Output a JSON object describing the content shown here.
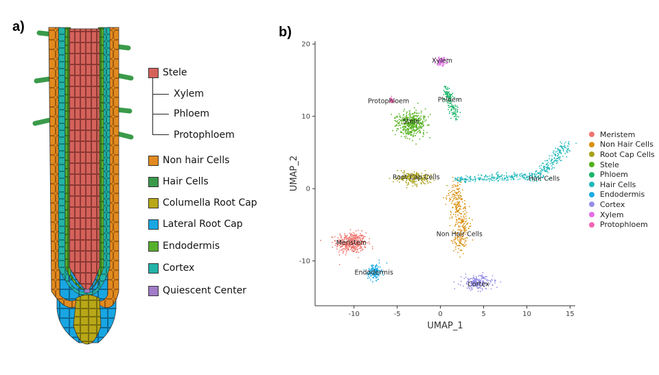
{
  "panel_a": {
    "label": "a)",
    "stele_label": "Stele",
    "stele_color": "#d4625b",
    "sub_items": [
      "Xylem",
      "Phloem",
      "Protophloem"
    ],
    "legend": [
      {
        "label": "Non hair Cells",
        "color": "#e28a1f"
      },
      {
        "label": "Hair Cells",
        "color": "#3a9a4a"
      },
      {
        "label": "Columella Root Cap",
        "color": "#b8a717"
      },
      {
        "label": "Lateral Root Cap",
        "color": "#18a6e3"
      },
      {
        "label": "Endodermis",
        "color": "#57b02c"
      },
      {
        "label": "Cortex",
        "color": "#22b3a9"
      },
      {
        "label": "Quiescent Center",
        "color": "#a07cc8"
      }
    ]
  },
  "chart_data": {
    "type": "scatter",
    "panel_label": "b)",
    "xlabel": "UMAP_1",
    "ylabel": "UMAP_2",
    "xlim": [
      -14.5,
      15.6
    ],
    "ylim": [
      -16.2,
      20.4
    ],
    "xticks": [
      -10,
      -5,
      0,
      5,
      10,
      15
    ],
    "yticks": [
      -10,
      0,
      10,
      20
    ],
    "grid": false,
    "legend_position": "right",
    "series": [
      {
        "name": "Meristem",
        "color": "#ef766f",
        "cluster_label": "Meristem",
        "center": [
          -10.3,
          -7.5
        ],
        "label_pos": [
          -10.3,
          -7.5
        ],
        "spread": [
          1.6,
          1.3
        ],
        "n": 420
      },
      {
        "name": "Non Hair Cells",
        "color": "#d9900f",
        "cluster_label": "Non Hair Cells",
        "center": [
          2.2,
          -4.5
        ],
        "label_pos": [
          2.2,
          -6.3
        ],
        "spread": [
          0.9,
          3.5
        ],
        "n": 330
      },
      {
        "name": "Root Cap Cells",
        "color": "#a8a11b",
        "cluster_label": "Root Cap Cells",
        "center": [
          -3.0,
          1.5
        ],
        "label_pos": [
          -2.8,
          1.6
        ],
        "spread": [
          2.0,
          0.8
        ],
        "n": 230
      },
      {
        "name": "Stele",
        "color": "#52b11a",
        "cluster_label": "Stele",
        "center": [
          -3.3,
          9.0
        ],
        "label_pos": [
          -3.4,
          9.3
        ],
        "spread": [
          1.5,
          1.6
        ],
        "n": 420
      },
      {
        "name": "Phloem",
        "color": "#1bb56a",
        "cluster_label": "Phloem",
        "center": [
          1.1,
          12.5
        ],
        "label_pos": [
          1.1,
          12.3
        ],
        "spread": [
          0.5,
          1.6
        ],
        "n": 150
      },
      {
        "name": "Hair Cells",
        "color": "#21b7ba",
        "cluster_label": "Hair Cells",
        "center": [
          9.0,
          1.8
        ],
        "label_pos": [
          12.0,
          1.4
        ],
        "spread": [
          3.5,
          1.0
        ],
        "n": 420
      },
      {
        "name": "Endodermis",
        "color": "#1cabe3",
        "cluster_label": "Endodermis",
        "center": [
          -7.6,
          -11.5
        ],
        "label_pos": [
          -7.7,
          -11.6
        ],
        "spread": [
          0.7,
          1.0
        ],
        "n": 150
      },
      {
        "name": "Cortex",
        "color": "#958ee8",
        "cluster_label": "Cortex",
        "center": [
          4.3,
          -13.0
        ],
        "label_pos": [
          4.4,
          -13.2
        ],
        "spread": [
          1.6,
          0.9
        ],
        "n": 220
      },
      {
        "name": "Xylem",
        "color": "#e26ee6",
        "cluster_label": "Xylem",
        "center": [
          0.1,
          17.6
        ],
        "label_pos": [
          0.2,
          17.7
        ],
        "spread": [
          0.6,
          0.5
        ],
        "n": 90
      },
      {
        "name": "Protophloem",
        "color": "#f266b3",
        "cluster_label": "Protophloem",
        "center": [
          -5.7,
          12.2
        ],
        "label_pos": [
          -6.0,
          12.1
        ],
        "spread": [
          0.3,
          0.4
        ],
        "n": 40
      }
    ]
  }
}
